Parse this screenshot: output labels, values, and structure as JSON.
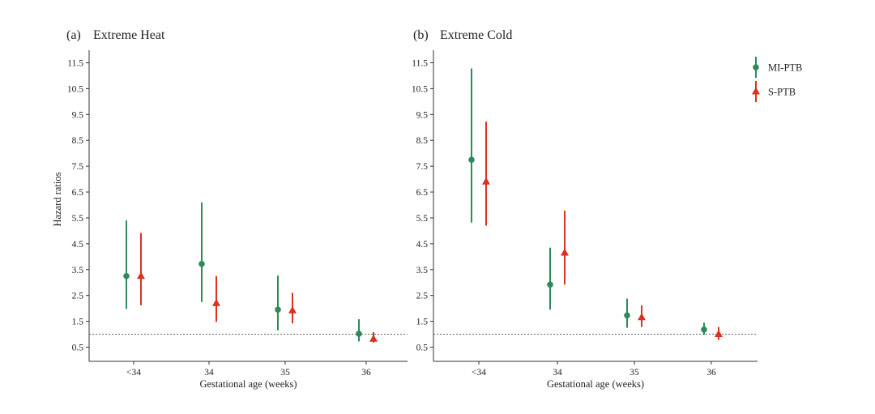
{
  "colors": {
    "mi_ptb": "#2e8b57",
    "s_ptb": "#d9321f",
    "axis": "#333333",
    "reference_line": "#666666"
  },
  "legend": {
    "items": [
      {
        "label": "MI-PTB",
        "marker": "circle"
      },
      {
        "label": "S-PTB",
        "marker": "triangle"
      }
    ]
  },
  "chart_data": [
    {
      "type": "scatter",
      "panel_label": "(a)",
      "title": "Extreme Heat",
      "xlabel": "Gestational age (weeks)",
      "ylabel": "Hazard ratios",
      "categories": [
        "<34",
        "34",
        "35",
        "36"
      ],
      "yticks": [
        0.5,
        1.5,
        2.5,
        3.5,
        4.5,
        5.5,
        6.5,
        7.5,
        8.5,
        9.5,
        10.5,
        11.5
      ],
      "ylim": [
        -0.05,
        11.95
      ],
      "reference_line": 1,
      "series": [
        {
          "name": "MI-PTB",
          "estimates": [
            3.25,
            3.72,
            1.95,
            1.02
          ],
          "lower": [
            1.98,
            2.25,
            1.15,
            0.72
          ],
          "upper": [
            5.4,
            6.1,
            3.27,
            1.58
          ]
        },
        {
          "name": "S-PTB",
          "estimates": [
            3.25,
            2.2,
            1.92,
            0.82
          ],
          "lower": [
            2.12,
            1.48,
            1.42,
            0.68
          ],
          "upper": [
            4.92,
            3.25,
            2.6,
            1.08
          ]
        }
      ]
    },
    {
      "type": "scatter",
      "panel_label": "(b)",
      "title": "Extreme Cold",
      "xlabel": "Gestational age (weeks)",
      "ylabel": "",
      "categories": [
        "<34",
        "34",
        "35",
        "36"
      ],
      "yticks": [
        0.5,
        1.5,
        2.5,
        3.5,
        4.5,
        5.5,
        6.5,
        7.5,
        8.5,
        9.5,
        10.5,
        11.5
      ],
      "ylim": [
        -0.05,
        11.95
      ],
      "reference_line": 1,
      "series": [
        {
          "name": "MI-PTB",
          "estimates": [
            7.75,
            2.92,
            1.73,
            1.18
          ],
          "lower": [
            5.32,
            1.95,
            1.25,
            0.98
          ],
          "upper": [
            11.28,
            4.35,
            2.38,
            1.45
          ]
        },
        {
          "name": "S-PTB",
          "estimates": [
            6.9,
            4.15,
            1.65,
            1.0
          ],
          "lower": [
            5.2,
            2.92,
            1.28,
            0.78
          ],
          "upper": [
            9.22,
            5.78,
            2.12,
            1.28
          ]
        }
      ]
    }
  ]
}
